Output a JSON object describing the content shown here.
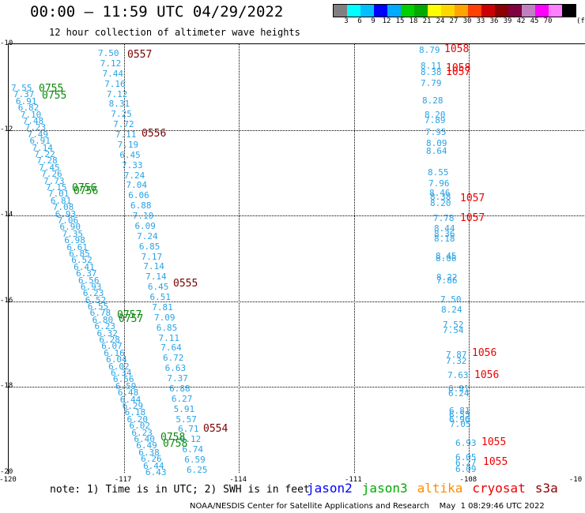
{
  "header": {
    "title": "00:00 – 11:59 UTC 04/29/2022",
    "subtitle": "12 hour collection of altimeter wave heights"
  },
  "colorbar": {
    "colors": [
      "#808080",
      "#00ffff",
      "#00bfff",
      "#0000ff",
      "#00aaff",
      "#00d000",
      "#00aa00",
      "#ffff00",
      "#ffd700",
      "#ffa500",
      "#ff4000",
      "#cc0000",
      "#8b0000",
      "#800040",
      "#c080c0",
      "#ff00ff",
      "#ff80ff",
      "#000000"
    ],
    "labels": [
      "3",
      "6",
      "9",
      "12",
      "15",
      "18",
      "21",
      "24",
      "27",
      "30",
      "33",
      "36",
      "39",
      "42",
      "45",
      "70"
    ],
    "unit": "(ft)"
  },
  "map": {
    "x_ticks": [
      "-120",
      "-117",
      "-114",
      "-111",
      "-108",
      "-10"
    ],
    "y_ticks": [
      "-10",
      "-12",
      "-14",
      "-16",
      "-18",
      "-20"
    ],
    "x_range": [
      -120,
      -105
    ],
    "y_range": [
      -20,
      -10
    ]
  },
  "track_values": {
    "center_track": [
      "7.50",
      "7.12",
      "7.44",
      "7.16",
      "7.12",
      "8.31",
      "7.25",
      "7.72",
      "7.11",
      "7.19",
      "6.45",
      "7.33",
      "7.24",
      "7.04",
      "6.06",
      "6.88",
      "7.10",
      "6.09",
      "7.24",
      "6.85",
      "7.17",
      "7.14",
      "7.14",
      "6.45",
      "6.51",
      "7.81",
      "7.09",
      "6.85",
      "7.11",
      "7.64",
      "6.72",
      "6.63",
      "7.37",
      "6.88",
      "6.27",
      "5.91",
      "5.57",
      "6.71",
      "6.12",
      "6.74",
      "6.59",
      "6.25"
    ],
    "left_track": [
      "7.55",
      "7.37",
      "6.91",
      "6.82",
      "7.10",
      "7.48",
      "7.23",
      "7.49",
      "6.91",
      "7.14",
      "7.22",
      "7.28",
      "7.45",
      "7.26",
      "7.73",
      "7.15",
      "7.01",
      "6.81",
      "7.08",
      "6.93",
      "7.06",
      "6.90",
      "7.35",
      "6.98",
      "6.61",
      "6.85",
      "6.52",
      "6.41",
      "6.37",
      "6.56",
      "6.93",
      "6.23",
      "6.52",
      "6.55",
      "6.78",
      "6.80",
      "6.23",
      "6.32",
      "6.28",
      "6.07",
      "6.16",
      "6.04",
      "6.02",
      "6.34",
      "6.56",
      "6.59",
      "6.48",
      "6.44",
      "6.29",
      "6.18",
      "6.20",
      "6.02",
      "6.23",
      "6.40",
      "6.49",
      "6.38",
      "6.26",
      "6.44",
      "6.43"
    ],
    "right_track": [
      "8.79",
      "8.11",
      "8.38",
      "7.79",
      "8.28",
      "8.20",
      "7.89",
      "7.95",
      "8.09",
      "8.64",
      "8.55",
      "7.96",
      "8.46",
      "8.38",
      "8.20",
      "7.78",
      "8.44",
      "8.36",
      "8.18",
      "8.45",
      "8.06",
      "8.22",
      "7.86",
      "7.50",
      "8.24",
      "7.52",
      "7.54",
      "7.87",
      "7.32",
      "7.63",
      "6.91",
      "6.24",
      "6.81",
      "6.55",
      "6.96",
      "7.05",
      "6.93",
      "6.05",
      "6.27",
      "6.09"
    ]
  },
  "time_labels": {
    "dark": [
      "0557",
      "0556",
      "0555",
      "0554"
    ],
    "green": [
      "0755",
      "0755",
      "0756",
      "0756",
      "0757",
      "0757",
      "0758",
      "0758"
    ],
    "red": [
      "1058",
      "1058",
      "1057",
      "1057",
      "1057",
      "1056",
      "1056",
      "1055",
      "1055"
    ]
  },
  "note": "note: 1) Time is in UTC; 2) SWH is in feet",
  "legend": [
    {
      "name": "jason2",
      "color": "#0000ff"
    },
    {
      "name": "jason3",
      "color": "#00aa00"
    },
    {
      "name": "altika",
      "color": "#ff8c00"
    },
    {
      "name": "cryosat",
      "color": "#ee0000"
    },
    {
      "name": "s3a",
      "color": "#8b0000"
    }
  ],
  "footer": "NOAA/NESDIS Center for Satellite Applications and Research    May  1 08:29:46 UTC 2022"
}
